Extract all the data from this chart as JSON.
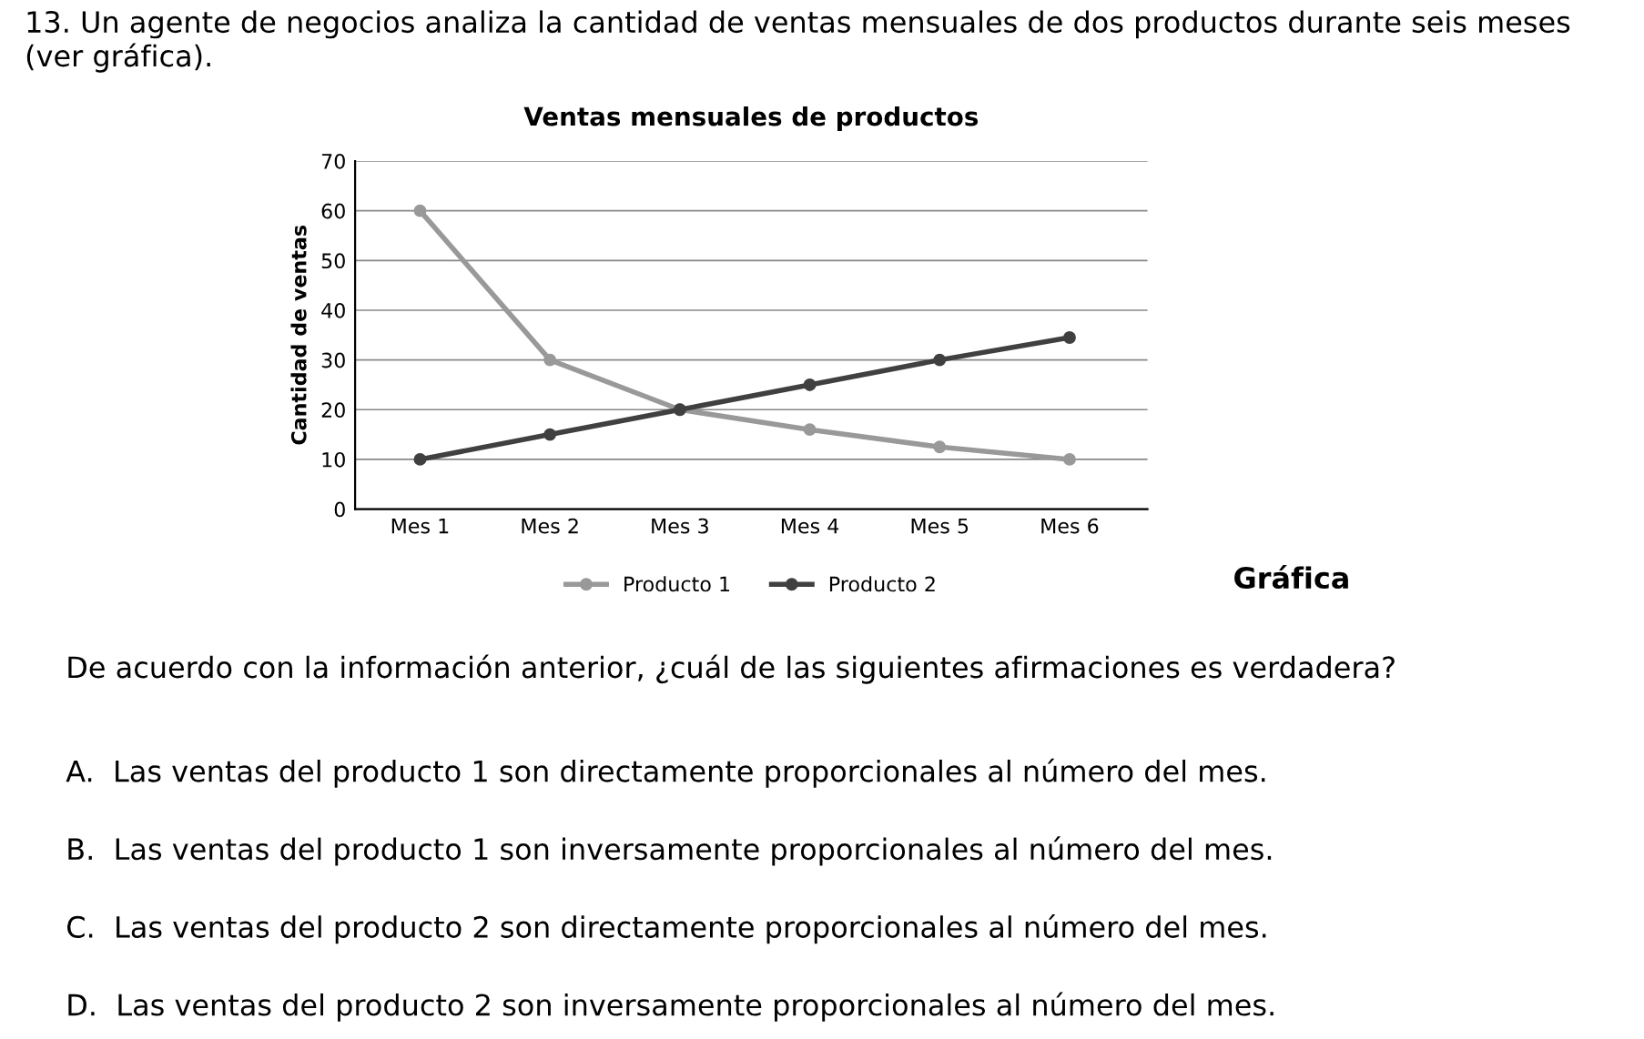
{
  "chart_data": {
    "type": "line",
    "title": "Ventas mensuales de productos",
    "ylabel": "Cantidad de ventas",
    "categories": [
      "Mes 1",
      "Mes 2",
      "Mes 3",
      "Mes 4",
      "Mes 5",
      "Mes 6"
    ],
    "series": [
      {
        "name": "Producto 1",
        "color": "#999999",
        "values": [
          60,
          30,
          20,
          16,
          12.5,
          10
        ]
      },
      {
        "name": "Producto 2",
        "color": "#404040",
        "values": [
          10,
          15,
          20,
          25,
          30,
          34.5
        ]
      }
    ],
    "ylim": [
      0,
      70
    ],
    "yticks": [
      0,
      10,
      20,
      30,
      40,
      50,
      60,
      70
    ],
    "grid": "y",
    "legend": "bottom",
    "marker": "circle",
    "line_style": "solid",
    "annotations": [
      "13. Un agente de negocios analiza la cantidad de ventas mensuales de dos productos durante seis meses\n(ver gráfica).",
      "Gráfica",
      "De acuerdo con la información anterior, ¿cuál de las siguientes afirmaciones es verdadera?",
      "A.  Las ventas del producto 1 son directamente proporcionales al número del mes.",
      "B.  Las ventas del producto 1 son inversamente proporcionales al número del mes.",
      "C.  Las ventas del producto 2 son directamente proporcionales al número del mes.",
      "D.  Las ventas del producto 2 son inversamente proporcionales al número del mes."
    ]
  }
}
